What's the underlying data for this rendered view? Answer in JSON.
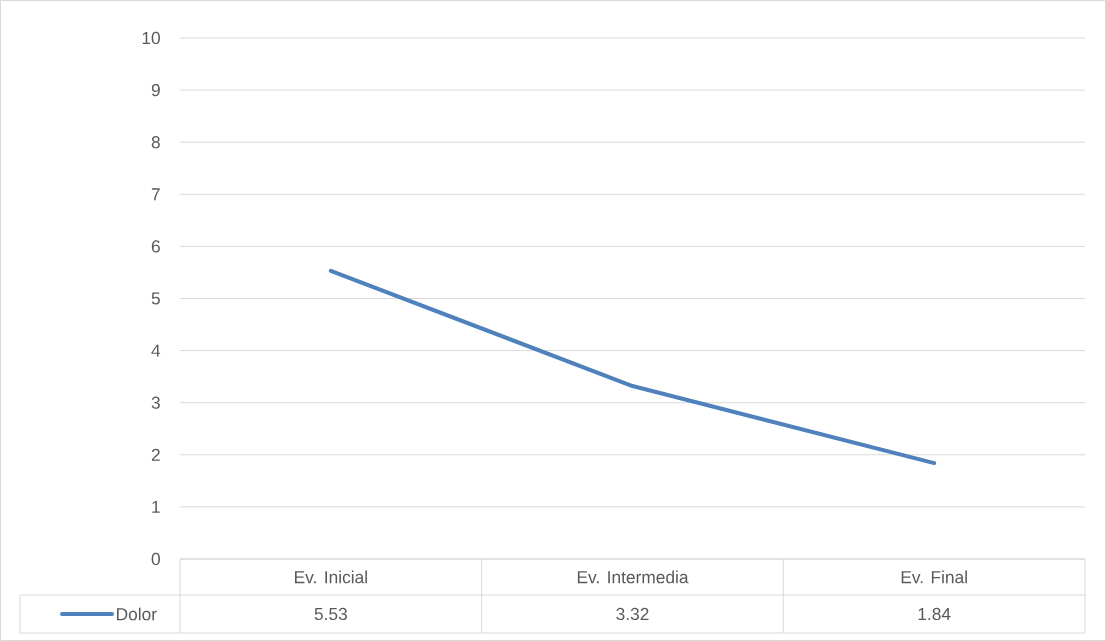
{
  "chart_data": {
    "type": "line",
    "categories": [
      "Ev. Inicial",
      "Ev. Intermedia",
      "Ev. Final"
    ],
    "series": [
      {
        "name": "Dolor",
        "color": "#4f81bd",
        "values": [
          5.53,
          3.32,
          1.84
        ],
        "value_labels": [
          "5.53",
          "3.32",
          "1.84"
        ]
      }
    ],
    "ylim": [
      0,
      10
    ],
    "yticks": [
      0,
      1,
      2,
      3,
      4,
      5,
      6,
      7,
      8,
      9,
      10
    ],
    "grid": "y",
    "legend": "bottom"
  }
}
